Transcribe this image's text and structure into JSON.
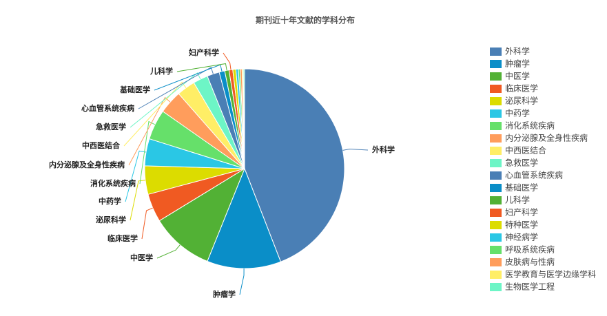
{
  "chart_data": {
    "type": "pie",
    "title": "期刊近十年文献的学科分布",
    "categories": [
      "外科学",
      "肿瘤学",
      "中医学",
      "临床医学",
      "泌尿科学",
      "中药学",
      "消化系统疾病",
      "内分泌腺及全身性疾病",
      "中西医结合",
      "急救医学",
      "心血管系统疾病",
      "基础医学",
      "儿科学",
      "妇产科学",
      "特种医学",
      "神经病学",
      "呼吸系统疾病",
      "皮肤病与性病",
      "医学教育与医学边缘学科",
      "生物医学工程"
    ],
    "values": [
      44.2,
      12,
      10.2,
      4.6,
      4.6,
      4.4,
      4.9,
      3.8,
      3,
      2.4,
      2,
      0.9,
      0.7,
      0.6,
      0.5,
      0.4,
      0.3,
      0.3,
      0.2,
      0.2
    ],
    "colors": [
      "#4a7fb5",
      "#0a8ec8",
      "#52b135",
      "#f05a22",
      "#dcdc00",
      "#2ac7e5",
      "#66e06a",
      "#ff9d5c",
      "#ffee66",
      "#6df5c6",
      "#4a7fb5",
      "#0a8ec8",
      "#52b135",
      "#f05a22",
      "#dcdc00",
      "#2ac7e5",
      "#66e06a",
      "#ff9d5c",
      "#ffee66",
      "#6df5c6"
    ],
    "legend": "right"
  }
}
